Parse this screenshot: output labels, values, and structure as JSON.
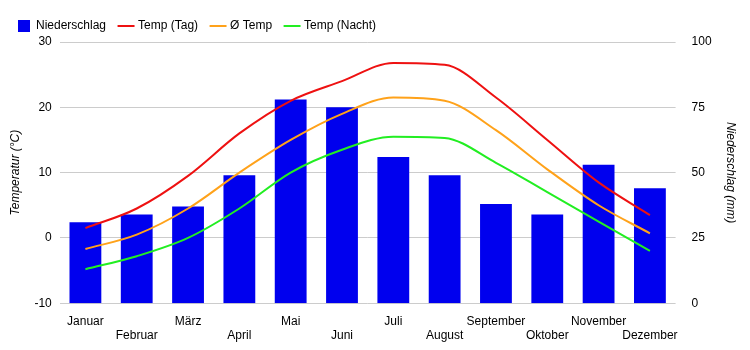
{
  "chart_data": {
    "type": "bar",
    "categories": [
      "Januar",
      "Februar",
      "März",
      "April",
      "Mai",
      "Juni",
      "Juli",
      "August",
      "September",
      "Oktober",
      "November",
      "Dezember"
    ],
    "series": [
      {
        "name": "Niederschlag",
        "type": "bar",
        "axis": "y2",
        "color": "#0000ee",
        "values": [
          31,
          34,
          37,
          49,
          78,
          75,
          56,
          49,
          38,
          34,
          53,
          44
        ]
      },
      {
        "name": "Temp (Tag)",
        "type": "line",
        "color": "#ee1111",
        "values": [
          1.5,
          4.5,
          9.5,
          16,
          21,
          24,
          26.8,
          26.5,
          21.5,
          15,
          8.5,
          3.5
        ]
      },
      {
        "name": "Ø Temp",
        "type": "line",
        "color": "#ffa21a",
        "values": [
          -1.7,
          0.5,
          4.5,
          10,
          15,
          19,
          21.5,
          21,
          16.5,
          10.5,
          5,
          0.7
        ]
      },
      {
        "name": "Temp (Nacht)",
        "type": "line",
        "color": "#22ee22",
        "values": [
          -4.8,
          -2.8,
          0,
          4.5,
          10,
          13.5,
          15.5,
          15.3,
          11.5,
          7,
          2.5,
          -2
        ]
      }
    ],
    "y_label": "Temperatur (°C)",
    "y2_label": "Niederschlag (mm)",
    "ylim": [
      -10,
      30
    ],
    "yticks": [
      -10,
      0,
      10,
      20,
      30
    ],
    "y2lim": [
      0,
      100
    ],
    "y2ticks": [
      0,
      25,
      50,
      75,
      100
    ],
    "grid": true,
    "legend": "top-left"
  }
}
